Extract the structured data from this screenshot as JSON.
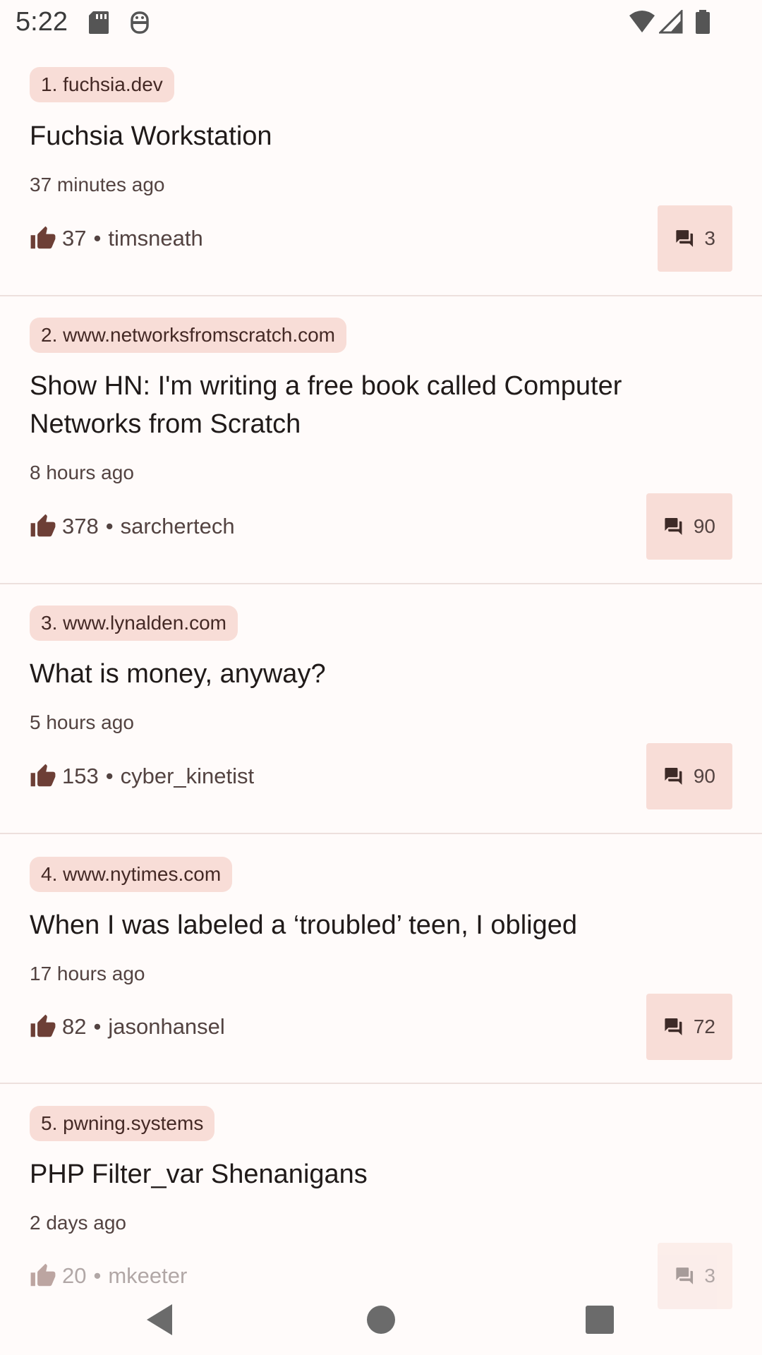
{
  "status_bar": {
    "time": "5:22",
    "left_icons": [
      "sd-card-icon",
      "android-debug-icon"
    ],
    "right_icons": [
      "wifi-icon",
      "cell-signal-icon",
      "battery-icon"
    ]
  },
  "colors": {
    "background": "#fffbfa",
    "chip": "#f8ddd7",
    "text_primary": "#201a19",
    "text_secondary": "#534341",
    "accent_brown": "#6d3f36"
  },
  "stories": [
    {
      "rank_domain": "1. fuchsia.dev",
      "title": "Fuchsia Workstation",
      "time_ago": "37 minutes ago",
      "points": "37",
      "author": "timsneath",
      "comments": "3"
    },
    {
      "rank_domain": "2. www.networksfromscratch.com",
      "title": "Show HN: I'm writing a free book called Computer Networks from Scratch",
      "time_ago": "8 hours ago",
      "points": "378",
      "author": "sarchertech",
      "comments": "90"
    },
    {
      "rank_domain": "3. www.lynalden.com",
      "title": "What is money, anyway?",
      "time_ago": "5 hours ago",
      "points": "153",
      "author": "cyber_kinetist",
      "comments": "90"
    },
    {
      "rank_domain": "4. www.nytimes.com",
      "title": "When I was labeled a ‘troubled’ teen, I obliged",
      "time_ago": "17 hours ago",
      "points": "82",
      "author": "jasonhansel",
      "comments": "72"
    },
    {
      "rank_domain": "5. pwning.systems",
      "title": "PHP Filter_var Shenanigans",
      "time_ago": "2 days ago",
      "points": "20",
      "author": "mkeeter",
      "comments": "3"
    }
  ],
  "separator": "•",
  "nav_bar": {
    "buttons": [
      "back-icon",
      "home-icon",
      "recents-icon"
    ]
  }
}
